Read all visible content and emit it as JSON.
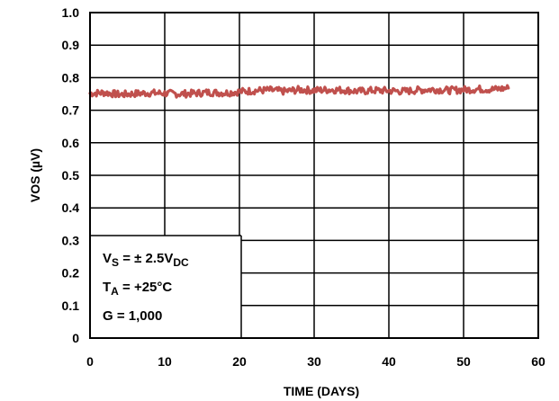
{
  "chart_data": {
    "type": "line",
    "title": "",
    "xlabel": "TIME (DAYS)",
    "ylabel": "VOS (µV)",
    "xlim": [
      0,
      60
    ],
    "ylim": [
      0,
      1.0
    ],
    "xticks": [
      "0",
      "10",
      "20",
      "30",
      "40",
      "50",
      "60"
    ],
    "yticks": [
      "0",
      "0.1",
      "0.2",
      "0.3",
      "0.4",
      "0.5",
      "0.6",
      "0.7",
      "0.8",
      "0.9",
      "1.0"
    ],
    "grid": true,
    "series_color": "#c0504d",
    "series": [
      {
        "x": [
          0,
          2,
          4,
          6,
          8,
          10,
          12,
          14,
          16,
          18,
          20,
          22,
          24,
          26,
          28,
          30,
          32,
          34,
          36,
          38,
          40,
          42,
          44,
          46,
          48,
          50,
          52,
          54,
          56
        ],
        "y": [
          0.752,
          0.754,
          0.748,
          0.751,
          0.753,
          0.752,
          0.75,
          0.752,
          0.755,
          0.753,
          0.757,
          0.76,
          0.762,
          0.758,
          0.763,
          0.761,
          0.763,
          0.762,
          0.758,
          0.761,
          0.76,
          0.758,
          0.762,
          0.764,
          0.761,
          0.763,
          0.765,
          0.764,
          0.768
        ]
      }
    ],
    "annotation": {
      "vs_main": "V",
      "vs_sub": "S",
      "vs_rest": " = ± 2.5V",
      "vs_sub2": "DC",
      "ta_main": "T",
      "ta_sub": "A",
      "ta_rest": " = +25°C",
      "gain": "G = 1,000"
    }
  }
}
